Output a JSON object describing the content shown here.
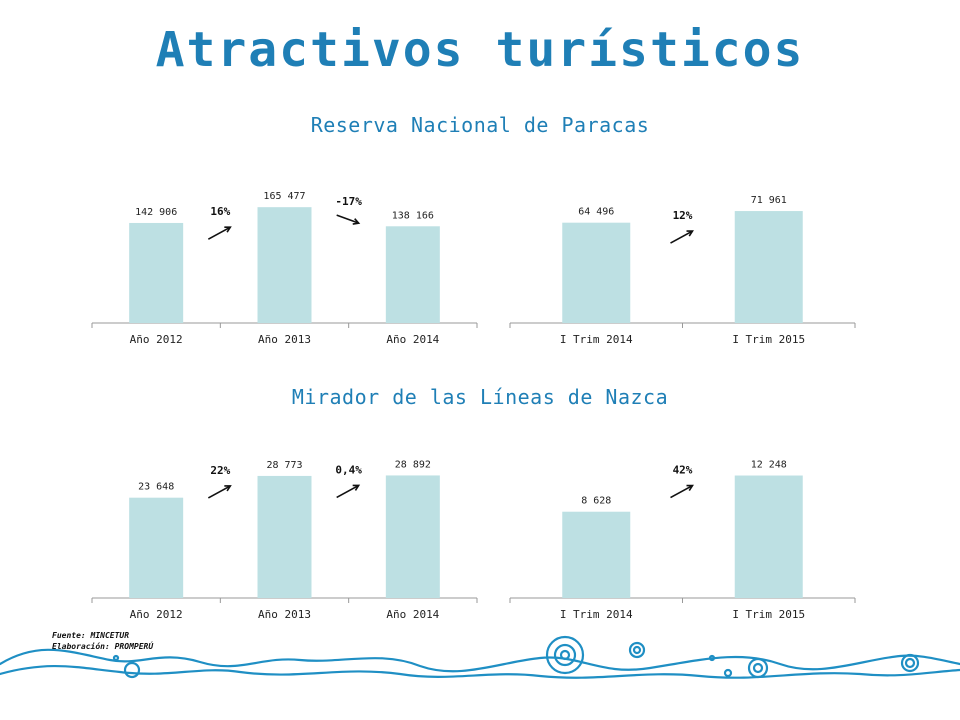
{
  "title": "Atractivos turísticos",
  "sections": [
    {
      "title": "Reserva Nacional de Paracas"
    },
    {
      "title": "Mirador de las Líneas de Nazca"
    }
  ],
  "chart_data": [
    {
      "type": "bar",
      "categories": [
        "Año 2012",
        "Año 2013",
        "Año 2014"
      ],
      "values": [
        142906,
        165477,
        138166
      ],
      "value_labels": [
        "142 906",
        "165 477",
        "138 166"
      ],
      "changes": [
        {
          "label": "16%",
          "direction": "up"
        },
        {
          "label": "-17%",
          "direction": "down"
        }
      ],
      "bar_color": "#bde0e3",
      "ylim": [
        0,
        200000
      ]
    },
    {
      "type": "bar",
      "categories": [
        "I Trim 2014",
        "I Trim 2015"
      ],
      "values": [
        64496,
        71961
      ],
      "value_labels": [
        "64 496",
        "71 961"
      ],
      "changes": [
        {
          "label": "12%",
          "direction": "up"
        }
      ],
      "bar_color": "#bde0e3",
      "ylim": [
        0,
        90000
      ]
    },
    {
      "type": "bar",
      "categories": [
        "Año 2012",
        "Año 2013",
        "Año 2014"
      ],
      "values": [
        23648,
        28773,
        28892
      ],
      "value_labels": [
        "23 648",
        "28 773",
        "28 892"
      ],
      "changes": [
        {
          "label": "22%",
          "direction": "up"
        },
        {
          "label": "0,4%",
          "direction": "up"
        }
      ],
      "bar_color": "#bde0e3",
      "ylim": [
        0,
        33000
      ]
    },
    {
      "type": "bar",
      "categories": [
        "I Trim 2014",
        "I Trim 2015"
      ],
      "values": [
        8628,
        12248
      ],
      "value_labels": [
        "8 628",
        "12 248"
      ],
      "changes": [
        {
          "label": "42%",
          "direction": "up"
        }
      ],
      "bar_color": "#bde0e3",
      "ylim": [
        0,
        14000
      ]
    }
  ],
  "footer": {
    "source": "Fuente: MINCETUR",
    "elaboration": "Elaboración: PROMPERÚ"
  },
  "colors": {
    "title": "#1f7fb6",
    "text": "#111111",
    "axis": "#999999",
    "decoration": "#1f8fc4"
  }
}
